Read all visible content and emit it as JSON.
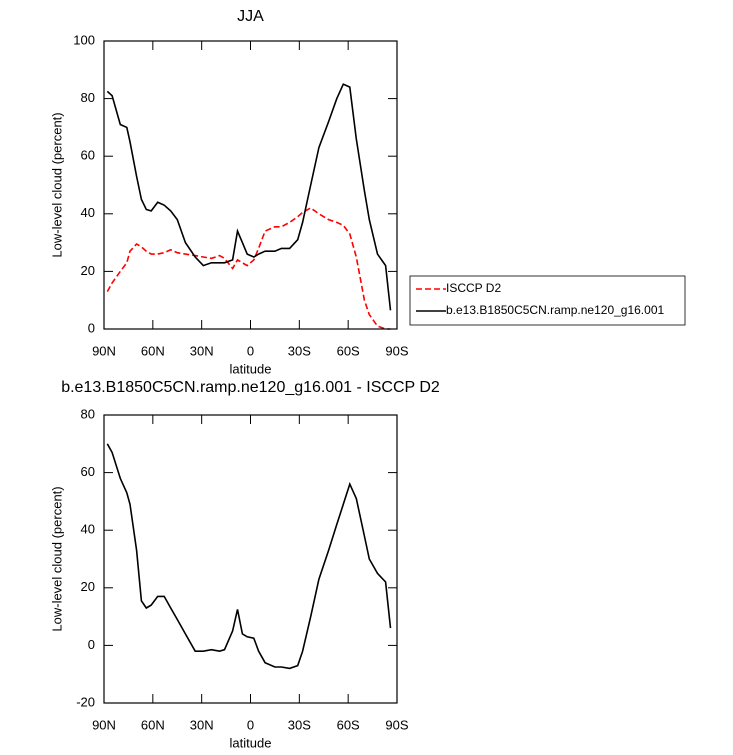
{
  "chart_data": [
    {
      "type": "line",
      "title": "JJA",
      "xlabel": "latitude",
      "ylabel": "Low-level cloud (percent)",
      "x": [
        88,
        85,
        80,
        76,
        74,
        70,
        67,
        64,
        61,
        57,
        53,
        49,
        45,
        40,
        34,
        29,
        24,
        19,
        16,
        11,
        8,
        5,
        2,
        -2,
        -5,
        -9,
        -15,
        -19,
        -24,
        -29,
        -32,
        -37,
        -42,
        -48,
        -53,
        -57,
        -61,
        -65,
        -70,
        -73,
        -78,
        -83,
        -86
      ],
      "series": [
        {
          "name": "ISCCP D2",
          "color": "#ff0000",
          "linestyle": "dashed",
          "values": [
            13,
            16,
            20,
            23,
            27,
            29.5,
            28.5,
            27,
            26,
            26,
            26.5,
            27.5,
            26.5,
            26,
            25.5,
            25,
            24.5,
            25.5,
            24.5,
            21,
            24,
            23,
            22,
            24,
            28,
            34,
            35.5,
            35.5,
            37,
            39,
            40.5,
            42,
            40,
            38,
            37,
            36,
            33,
            25,
            10,
            5,
            1,
            0,
            0
          ]
        },
        {
          "name": "b.e13.B1850C5CN.ramp.ne120_g16.001",
          "color": "#000000",
          "linestyle": "solid",
          "values": [
            82.5,
            81,
            71,
            70,
            65,
            53,
            45,
            41.5,
            41,
            44,
            43,
            41,
            38,
            30,
            25,
            22,
            23,
            23,
            23,
            24,
            34,
            30,
            26,
            25,
            26,
            27,
            27,
            28,
            28,
            31,
            37,
            50,
            63,
            72,
            80,
            85,
            84,
            66,
            48,
            38,
            26,
            22,
            6.5
          ]
        }
      ],
      "xlim": [
        90,
        -90
      ],
      "xticks": [
        {
          "value": 90,
          "label": "90N"
        },
        {
          "value": 60,
          "label": "60N"
        },
        {
          "value": 30,
          "label": "30N"
        },
        0,
        {
          "value": -30,
          "label": "30S"
        },
        {
          "value": -60,
          "label": "60S"
        },
        {
          "value": -90,
          "label": "90S"
        }
      ],
      "ylim": [
        0,
        100
      ],
      "yticks": [
        0,
        20,
        40,
        60,
        80,
        100
      ],
      "legend": "right"
    },
    {
      "type": "line",
      "title": "b.e13.B1850C5CN.ramp.ne120_g16.001 - ISCCP D2",
      "xlabel": "latitude",
      "ylabel": "Low-level cloud (percent)",
      "x": [
        88,
        85,
        80,
        76,
        74,
        70,
        67,
        64,
        61,
        57,
        53,
        49,
        45,
        40,
        34,
        29,
        24,
        19,
        16,
        11,
        8,
        5,
        2,
        -2,
        -5,
        -9,
        -15,
        -19,
        -24,
        -29,
        -32,
        -37,
        -42,
        -48,
        -53,
        -57,
        -61,
        -65,
        -70,
        -73,
        -78,
        -83,
        -86
      ],
      "color": "#000000",
      "values": [
        70,
        67,
        58,
        53,
        49,
        33,
        15.5,
        13,
        14,
        17,
        17,
        13,
        9,
        4,
        -2,
        -2,
        -1.5,
        -2,
        -1.5,
        5,
        12.5,
        4,
        3,
        2.5,
        -2,
        -6,
        -7.5,
        -7.5,
        -8,
        -7,
        -2,
        10,
        23,
        33,
        42,
        49,
        56,
        51,
        38,
        30,
        25,
        22,
        6
      ],
      "xlim": [
        90,
        -90
      ],
      "xticks": [
        {
          "value": 90,
          "label": "90N"
        },
        {
          "value": 60,
          "label": "60N"
        },
        {
          "value": 30,
          "label": "30N"
        },
        0,
        {
          "value": -30,
          "label": "30S"
        },
        {
          "value": -60,
          "label": "60S"
        },
        {
          "value": -90,
          "label": "90S"
        }
      ],
      "ylim": [
        -20,
        80
      ],
      "yticks": [
        -20,
        0,
        20,
        40,
        60,
        80
      ]
    }
  ]
}
